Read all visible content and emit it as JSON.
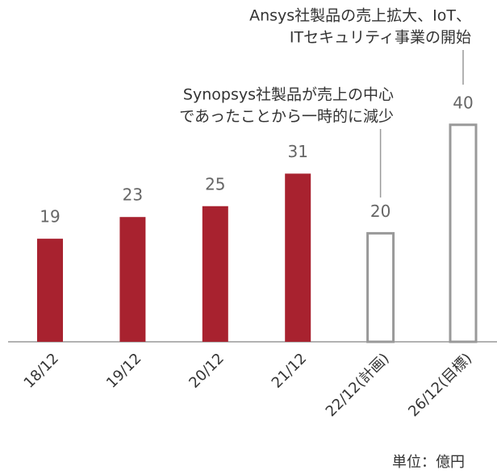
{
  "chart_data": {
    "type": "bar",
    "categories": [
      "18/12",
      "19/12",
      "20/12",
      "21/12",
      "22/12(計画)",
      "26/12(目標)"
    ],
    "values": [
      19,
      23,
      25,
      31,
      20,
      40
    ],
    "colors": [
      "#a8222f",
      "#a8222f",
      "#a8222f",
      "#a8222f",
      "#999999",
      "#999999"
    ],
    "filled": [
      true,
      true,
      true,
      true,
      false,
      false
    ],
    "annotations": [
      {
        "lines": [
          "Synopsys社製品が売上の中心",
          "であったことから一時的に減少"
        ]
      },
      {
        "lines": [
          "Ansys社製品の売上拡大、IoT、",
          "ITセキュリティ事業の開始"
        ]
      }
    ],
    "unit_label": "単位：億円"
  }
}
